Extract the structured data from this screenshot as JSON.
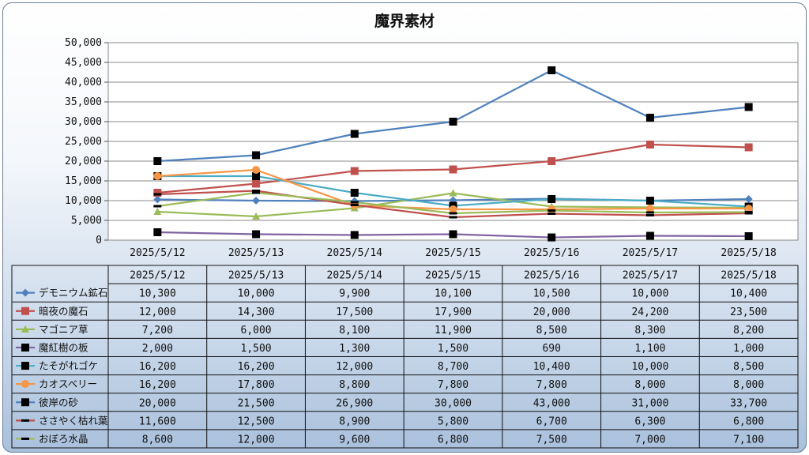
{
  "chart_data": {
    "type": "line",
    "title": "魔界素材",
    "xlabel": "",
    "ylabel": "",
    "ylim": [
      0,
      50000
    ],
    "yticks": [
      0,
      5000,
      10000,
      15000,
      20000,
      25000,
      30000,
      35000,
      40000,
      45000,
      50000
    ],
    "ytick_labels": [
      "0",
      "5,000",
      "10,000",
      "15,000",
      "20,000",
      "25,000",
      "30,000",
      "35,000",
      "40,000",
      "45,000",
      "50,000"
    ],
    "grid": true,
    "legend": "data-table",
    "categories": [
      "2025/5/12",
      "2025/5/13",
      "2025/5/14",
      "2025/5/15",
      "2025/5/16",
      "2025/5/17",
      "2025/5/18"
    ],
    "series": [
      {
        "name": "デモニウム鉱石",
        "color": "#4f81bd",
        "marker": "diamond",
        "values": [
          10300,
          10000,
          9900,
          10100,
          10500,
          10000,
          10400
        ],
        "labels": [
          "10,300",
          "10,000",
          "9,900",
          "10,100",
          "10,500",
          "10,000",
          "10,400"
        ]
      },
      {
        "name": "暗夜の魔石",
        "color": "#c0504d",
        "marker": "square",
        "values": [
          12000,
          14300,
          17500,
          17900,
          20000,
          24200,
          23500
        ],
        "labels": [
          "12,000",
          "14,300",
          "17,500",
          "17,900",
          "20,000",
          "24,200",
          "23,500"
        ]
      },
      {
        "name": "マゴニア草",
        "color": "#9bbb59",
        "marker": "triangle",
        "values": [
          7200,
          6000,
          8100,
          11900,
          8500,
          8300,
          8200
        ],
        "labels": [
          "7,200",
          "6,000",
          "8,100",
          "11,900",
          "8,500",
          "8,300",
          "8,200"
        ]
      },
      {
        "name": "魔紅樹の板",
        "color": "#8064a2",
        "marker": "blacksquare",
        "values": [
          2000,
          1500,
          1300,
          1500,
          690,
          1100,
          1000
        ],
        "labels": [
          "2,000",
          "1,500",
          "1,300",
          "1,500",
          "690",
          "1,100",
          "1,000"
        ]
      },
      {
        "name": "たそがれゴケ",
        "color": "#4bacc6",
        "marker": "blacksquare",
        "values": [
          16200,
          16200,
          12000,
          8700,
          10400,
          10000,
          8500
        ],
        "labels": [
          "16,200",
          "16,200",
          "12,000",
          "8,700",
          "10,400",
          "10,000",
          "8,500"
        ]
      },
      {
        "name": "カオスベリー",
        "color": "#f79646",
        "marker": "circle",
        "values": [
          16200,
          17800,
          8800,
          7800,
          7800,
          8000,
          8000
        ],
        "labels": [
          "16,200",
          "17,800",
          "8,800",
          "7,800",
          "7,800",
          "8,000",
          "8,000"
        ]
      },
      {
        "name": "彼岸の砂",
        "color": "#4f81bd",
        "marker": "blacksquare",
        "values": [
          20000,
          21500,
          26900,
          30000,
          43000,
          31000,
          33700
        ],
        "labels": [
          "20,000",
          "21,500",
          "26,900",
          "30,000",
          "43,000",
          "31,000",
          "33,700"
        ]
      },
      {
        "name": "ささやく枯れ葉",
        "color": "#c0504d",
        "marker": "dash",
        "values": [
          11600,
          12500,
          8900,
          5800,
          6700,
          6300,
          6800
        ],
        "labels": [
          "11,600",
          "12,500",
          "8,900",
          "5,800",
          "6,700",
          "6,300",
          "6,800"
        ]
      },
      {
        "name": "おぼろ水晶",
        "color": "#9bbb59",
        "marker": "dash",
        "values": [
          8600,
          12000,
          9600,
          6800,
          7500,
          7000,
          7100
        ],
        "labels": [
          "8,600",
          "12,000",
          "9,600",
          "6,800",
          "7,500",
          "7,000",
          "7,100"
        ]
      }
    ]
  }
}
